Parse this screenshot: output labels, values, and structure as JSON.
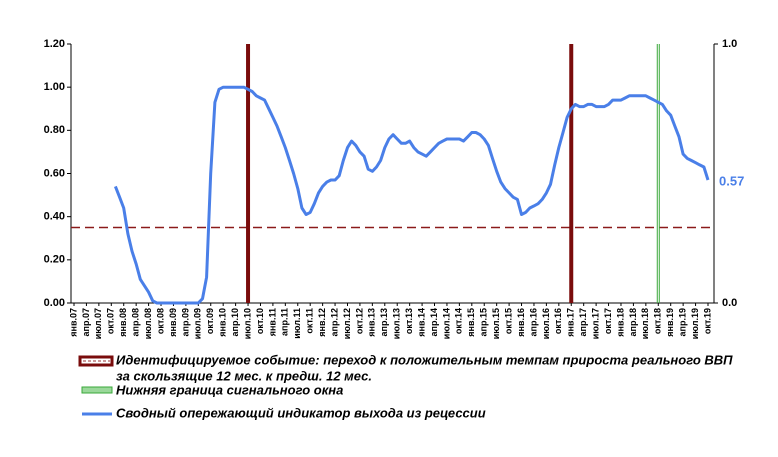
{
  "chart_data": {
    "type": "line",
    "categories": [
      "янв.07",
      null,
      null,
      "апр.07",
      null,
      null,
      "июл.07",
      null,
      null,
      "окт.07",
      null,
      null,
      "янв.08",
      null,
      null,
      "апр.08",
      null,
      null,
      "июл.08",
      null,
      null,
      "окт.08",
      null,
      null,
      "янв.09",
      null,
      null,
      "апр.09",
      null,
      null,
      "июл.09",
      null,
      null,
      "окт.09",
      null,
      null,
      "янв.10",
      null,
      null,
      "апр.10",
      null,
      null,
      "июл.10",
      null,
      null,
      "окт.10",
      null,
      null,
      "янв.11",
      null,
      null,
      "апр.11",
      null,
      null,
      "июл.11",
      null,
      null,
      "окт.11",
      null,
      null,
      "янв.12",
      null,
      null,
      "апр.12",
      null,
      null,
      "июл.12",
      null,
      null,
      "окт.12",
      null,
      null,
      "янв.13",
      null,
      null,
      "апр.13",
      null,
      null,
      "июл.13",
      null,
      null,
      "окт.13",
      null,
      null,
      "янв.14",
      null,
      null,
      "апр.14",
      null,
      null,
      "июл.14",
      null,
      null,
      "окт.14",
      null,
      null,
      "янв.15",
      null,
      null,
      "апр.15",
      null,
      null,
      "июл.15",
      null,
      null,
      "окт.15",
      null,
      null,
      "янв.16",
      null,
      null,
      "апр.16",
      null,
      null,
      "июл.16",
      null,
      null,
      "окт.16",
      null,
      null,
      "янв.17",
      null,
      null,
      "апр.17",
      null,
      null,
      "июл.17",
      null,
      null,
      "окт.17",
      null,
      null,
      "янв.18",
      null,
      null,
      "апр.18",
      null,
      null,
      "июл.18",
      null,
      null,
      "окт.18",
      null,
      null,
      "янв.19",
      null,
      null,
      "апр.19",
      null,
      null,
      "июл.19",
      null,
      null,
      "окт.19"
    ],
    "series": [
      {
        "name": "Сводный опережающий индикатор выхода из рецессии",
        "color": "#4a7fe8",
        "values": [
          null,
          null,
          null,
          null,
          null,
          null,
          null,
          null,
          null,
          null,
          0.54,
          0.49,
          0.44,
          0.32,
          0.24,
          0.18,
          0.11,
          0.08,
          0.05,
          0.01,
          0,
          0,
          0,
          0,
          0,
          0,
          0,
          0,
          0,
          0,
          0,
          0.02,
          0.12,
          0.6,
          0.93,
          0.99,
          1,
          1,
          1,
          1,
          1,
          1,
          0.99,
          0.98,
          0.96,
          0.95,
          0.94,
          0.9,
          0.86,
          0.82,
          0.77,
          0.72,
          0.66,
          0.6,
          0.53,
          0.44,
          0.41,
          0.42,
          0.46,
          0.51,
          0.54,
          0.56,
          0.57,
          0.57,
          0.59,
          0.66,
          0.72,
          0.75,
          0.73,
          0.7,
          0.68,
          0.62,
          0.61,
          0.63,
          0.66,
          0.72,
          0.76,
          0.78,
          0.76,
          0.74,
          0.74,
          0.75,
          0.72,
          0.7,
          0.69,
          0.68,
          0.7,
          0.72,
          0.74,
          0.75,
          0.76,
          0.76,
          0.76,
          0.76,
          0.75,
          0.77,
          0.79,
          0.79,
          0.78,
          0.76,
          0.73,
          0.67,
          0.61,
          0.56,
          0.53,
          0.51,
          0.49,
          0.48,
          0.41,
          0.42,
          0.44,
          0.45,
          0.46,
          0.48,
          0.51,
          0.55,
          0.64,
          0.72,
          0.79,
          0.86,
          0.9,
          0.92,
          0.91,
          0.91,
          0.92,
          0.92,
          0.91,
          0.91,
          0.91,
          0.92,
          0.94,
          0.94,
          0.94,
          0.95,
          0.96,
          0.96,
          0.96,
          0.96,
          0.96,
          0.95,
          0.94,
          0.93,
          0.92,
          0.89,
          0.87,
          0.82,
          0.77,
          0.69,
          0.67,
          0.66,
          0.65,
          0.64,
          0.63,
          0.57
        ]
      }
    ],
    "ylim": [
      0,
      1.2
    ],
    "yticks": [
      {
        "value": 0,
        "label": "0.00"
      },
      {
        "value": 0.2,
        "label": "0.20"
      },
      {
        "value": 0.4,
        "label": "0.40"
      },
      {
        "value": 0.6,
        "label": "0.60"
      },
      {
        "value": 0.8,
        "label": "0.80"
      },
      {
        "value": 1,
        "label": "1.00"
      },
      {
        "value": 1.2,
        "label": "1.20"
      }
    ],
    "y2lim": [
      0,
      1
    ],
    "y2ticks": [
      {
        "value": 0,
        "label": "0.0"
      },
      {
        "value": 1,
        "label": "1.0"
      }
    ],
    "threshold": {
      "value": 0.35,
      "color": "#8b1a1a"
    },
    "event_lines": {
      "name": [
        "Идентифицируемое событие: переход к положительным темпам прироста реального ВВП",
        "за скользящие 12 мес. к предш. 12 мес."
      ],
      "color": "#7a0c0c",
      "x": [
        "июл.10",
        "янв.17"
      ]
    },
    "window_line": {
      "name": "Нижняя граница сигнального окна",
      "color": "#3aa83a",
      "x": "окт.18"
    }
  }
}
